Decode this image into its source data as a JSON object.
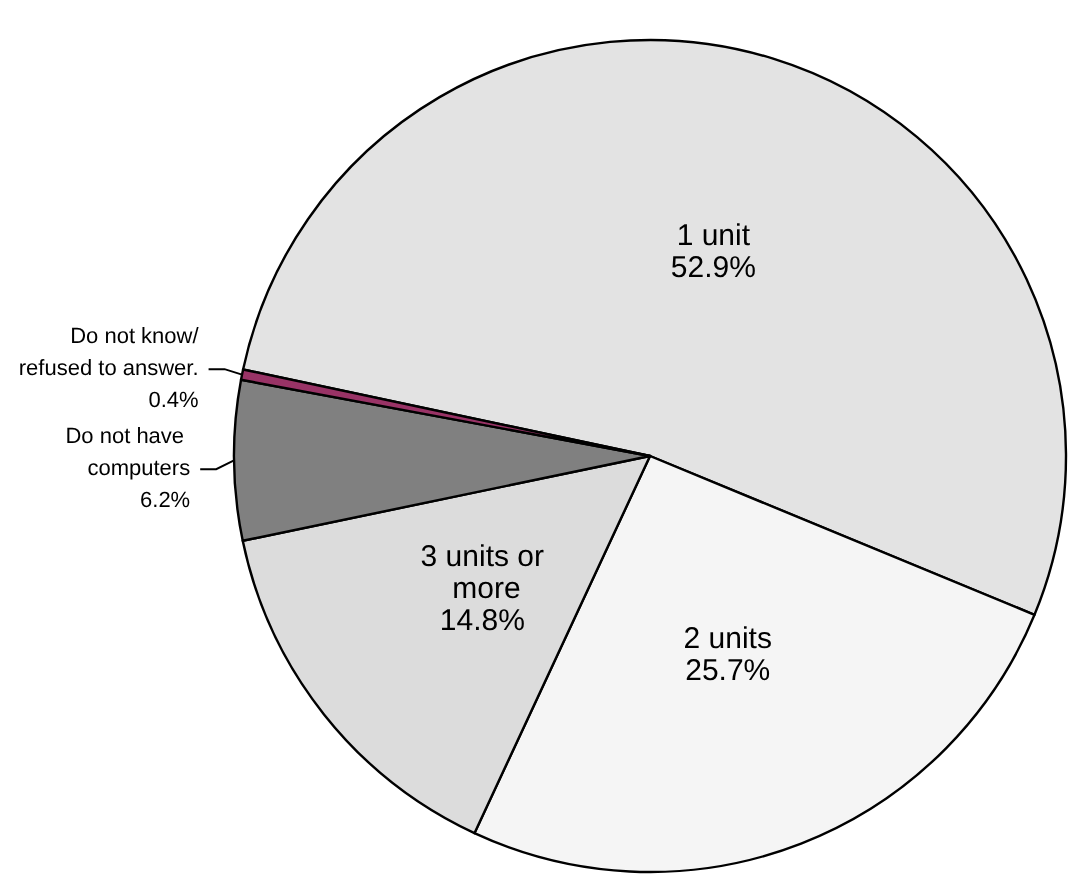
{
  "chart_data": {
    "type": "pie",
    "categories": [
      "1 unit",
      "2 units",
      "3 units or more",
      "Do not have computers",
      "Do not know/refused to answer."
    ],
    "values": [
      52.9,
      25.7,
      14.8,
      6.2,
      0.4
    ],
    "colors": [
      "#e3e3e3",
      "#f5f5f5",
      "#dcdcdc",
      "#808080",
      "#993366"
    ],
    "value_labels": [
      "52.9%",
      "25.7%",
      "14.8%",
      "6.2%",
      "0.4%"
    ]
  }
}
